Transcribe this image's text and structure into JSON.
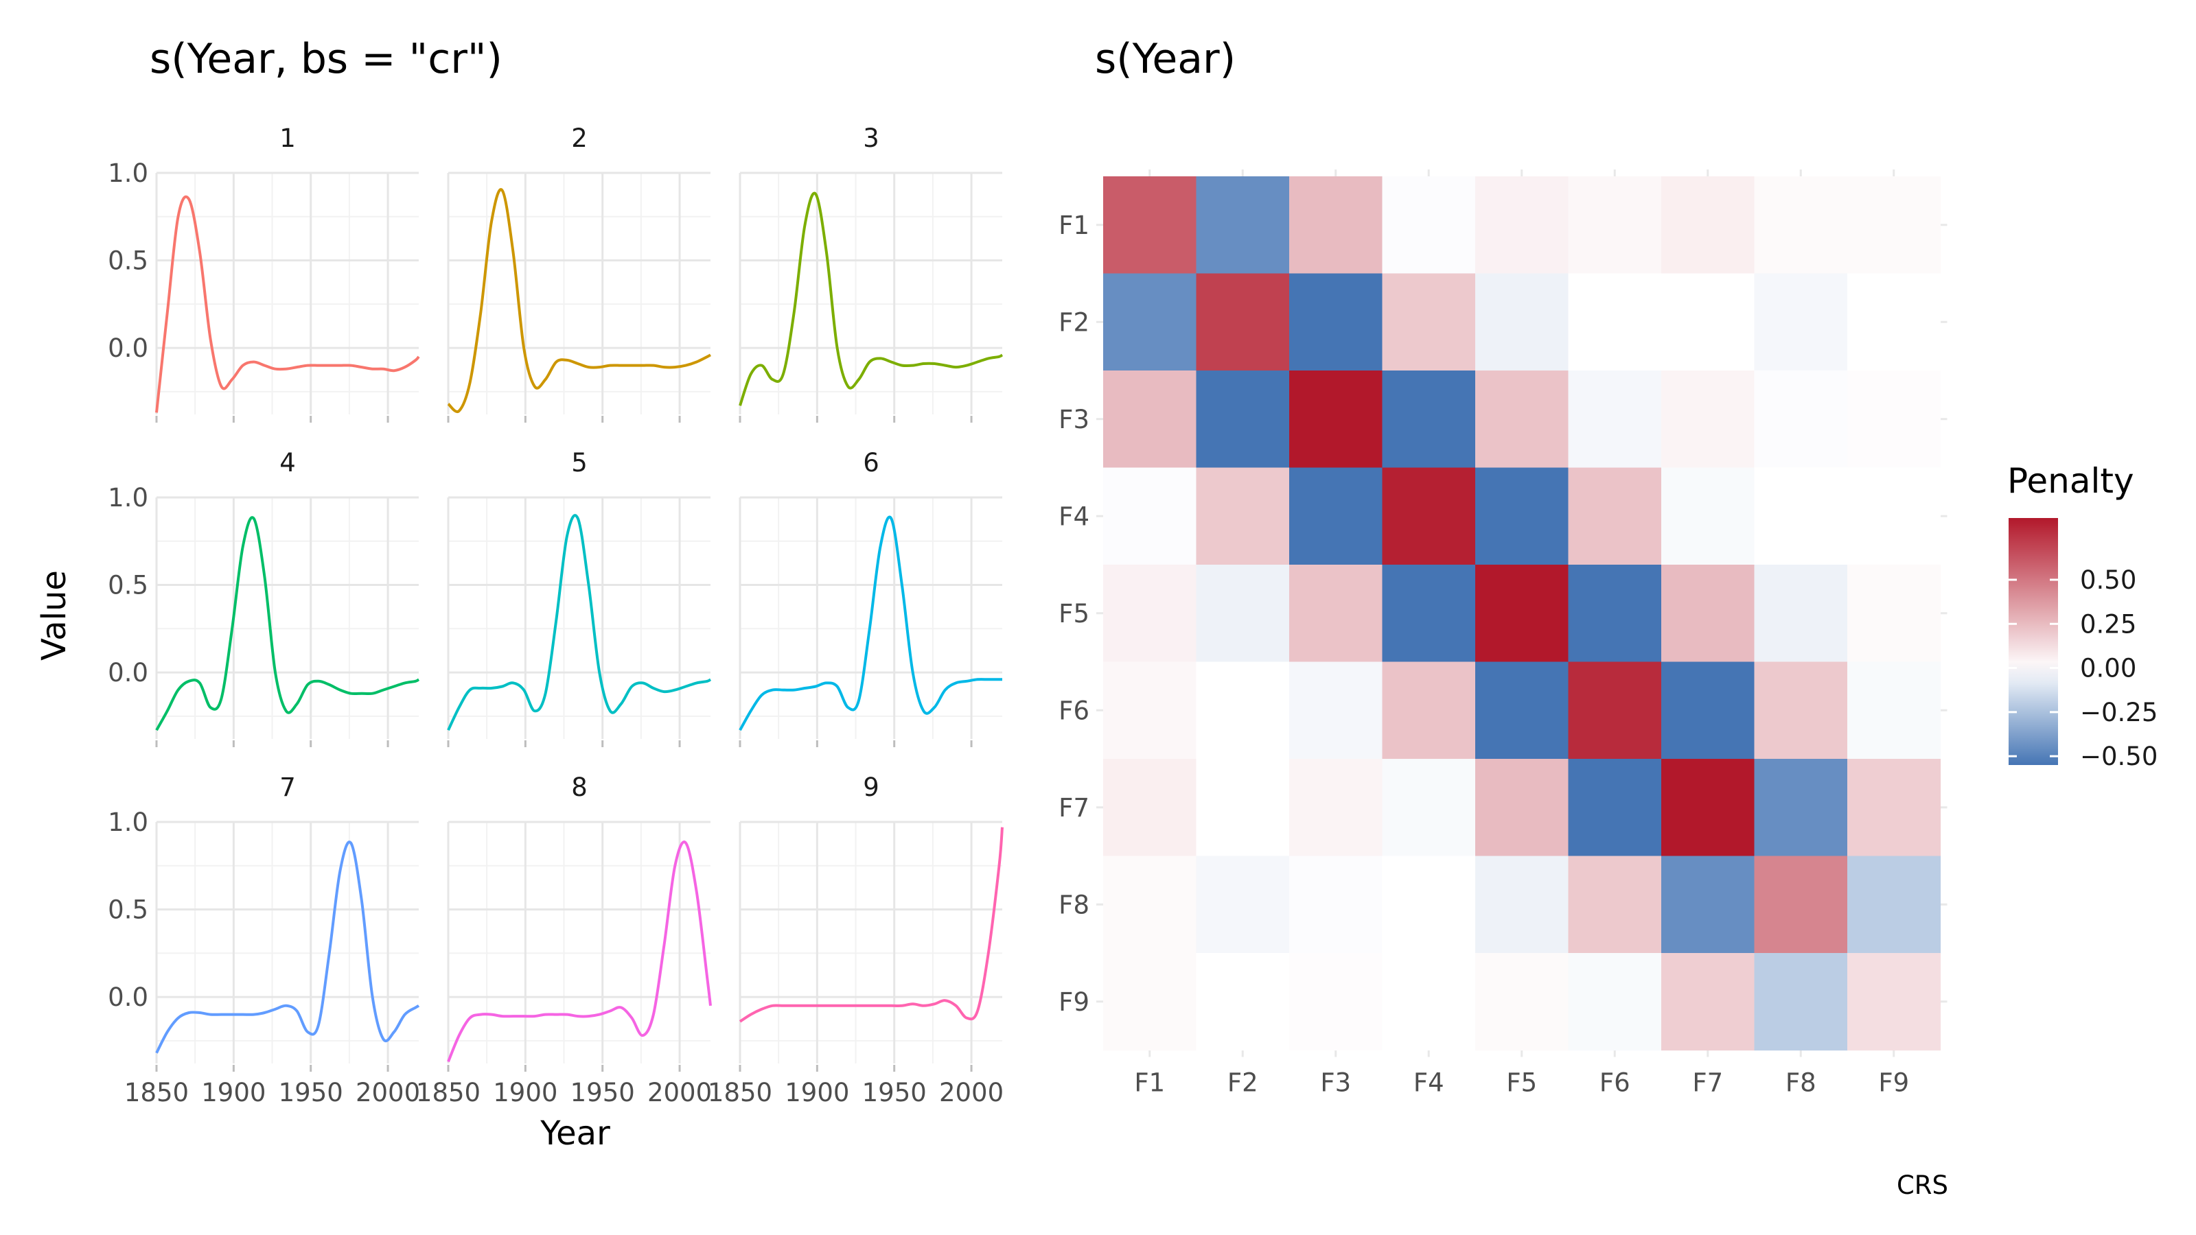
{
  "left_panel": {
    "title": "s(Year, bs = \"cr\")",
    "xlabel": "Year",
    "ylabel": "Value"
  },
  "right_panel": {
    "title": "s(Year)",
    "caption": "CRS"
  },
  "chart_data": [
    {
      "type": "line",
      "title": "s(Year, bs = \"cr\")",
      "xlabel": "Year",
      "ylabel": "Value",
      "xlim": [
        1850,
        2020
      ],
      "ylim": [
        -0.38,
        1.0
      ],
      "x_ticks": [
        1850,
        1900,
        1950,
        2000
      ],
      "x_tick_labels": [
        "1850",
        "1900",
        "1950",
        "2000"
      ],
      "y_ticks": [
        0.0,
        0.5,
        1.0
      ],
      "y_tick_labels": [
        "0.0",
        "0.5",
        "1.0"
      ],
      "grid": true,
      "facets": [
        {
          "label": "1",
          "color": "#F8766D",
          "x": [
            1850,
            1857,
            1864,
            1871,
            1878,
            1885,
            1892,
            1899,
            1906,
            1913,
            1920,
            1927,
            1934,
            1941,
            1948,
            1955,
            1962,
            1969,
            1976,
            1983,
            1990,
            1997,
            2004,
            2011,
            2018,
            2020
          ],
          "y": [
            -0.37,
            0.2,
            0.75,
            0.85,
            0.55,
            0.05,
            -0.22,
            -0.18,
            -0.1,
            -0.08,
            -0.1,
            -0.12,
            -0.12,
            -0.11,
            -0.1,
            -0.1,
            -0.1,
            -0.1,
            -0.1,
            -0.11,
            -0.12,
            -0.12,
            -0.13,
            -0.11,
            -0.07,
            -0.05
          ]
        },
        {
          "label": "2",
          "color": "#CD9600",
          "x": [
            1850,
            1857,
            1864,
            1871,
            1878,
            1885,
            1892,
            1899,
            1906,
            1913,
            1920,
            1927,
            1934,
            1941,
            1948,
            1955,
            1962,
            1969,
            1976,
            1983,
            1990,
            1997,
            2004,
            2011,
            2018,
            2020
          ],
          "y": [
            -0.32,
            -0.36,
            -0.2,
            0.2,
            0.72,
            0.9,
            0.55,
            0.0,
            -0.22,
            -0.18,
            -0.08,
            -0.07,
            -0.09,
            -0.11,
            -0.11,
            -0.1,
            -0.1,
            -0.1,
            -0.1,
            -0.1,
            -0.11,
            -0.11,
            -0.1,
            -0.08,
            -0.05,
            -0.04
          ]
        },
        {
          "label": "3",
          "color": "#7CAE00",
          "x": [
            1850,
            1857,
            1864,
            1871,
            1878,
            1885,
            1892,
            1899,
            1906,
            1913,
            1920,
            1927,
            1934,
            1941,
            1948,
            1955,
            1962,
            1969,
            1976,
            1983,
            1990,
            1997,
            2004,
            2011,
            2018,
            2020
          ],
          "y": [
            -0.33,
            -0.15,
            -0.1,
            -0.18,
            -0.15,
            0.2,
            0.7,
            0.88,
            0.55,
            0.0,
            -0.22,
            -0.18,
            -0.08,
            -0.06,
            -0.08,
            -0.1,
            -0.1,
            -0.09,
            -0.09,
            -0.1,
            -0.11,
            -0.1,
            -0.08,
            -0.06,
            -0.05,
            -0.04
          ]
        },
        {
          "label": "4",
          "color": "#00BE67",
          "x": [
            1850,
            1857,
            1864,
            1871,
            1878,
            1885,
            1892,
            1899,
            1906,
            1913,
            1920,
            1927,
            1934,
            1941,
            1948,
            1955,
            1962,
            1969,
            1976,
            1983,
            1990,
            1997,
            2004,
            2011,
            2018,
            2020
          ],
          "y": [
            -0.33,
            -0.22,
            -0.1,
            -0.05,
            -0.06,
            -0.2,
            -0.15,
            0.25,
            0.72,
            0.88,
            0.55,
            0.0,
            -0.22,
            -0.18,
            -0.07,
            -0.05,
            -0.07,
            -0.1,
            -0.12,
            -0.12,
            -0.12,
            -0.1,
            -0.08,
            -0.06,
            -0.05,
            -0.04
          ]
        },
        {
          "label": "5",
          "color": "#00BFC4",
          "x": [
            1850,
            1857,
            1864,
            1871,
            1878,
            1885,
            1892,
            1899,
            1906,
            1913,
            1920,
            1927,
            1934,
            1941,
            1948,
            1955,
            1962,
            1969,
            1976,
            1983,
            1990,
            1997,
            2004,
            2011,
            2018,
            2020
          ],
          "y": [
            -0.33,
            -0.2,
            -0.1,
            -0.09,
            -0.09,
            -0.08,
            -0.06,
            -0.1,
            -0.22,
            -0.12,
            0.3,
            0.78,
            0.88,
            0.5,
            0.0,
            -0.22,
            -0.18,
            -0.08,
            -0.06,
            -0.09,
            -0.11,
            -0.1,
            -0.08,
            -0.06,
            -0.05,
            -0.04
          ]
        },
        {
          "label": "6",
          "color": "#00B8E7",
          "x": [
            1850,
            1857,
            1864,
            1871,
            1878,
            1885,
            1892,
            1899,
            1906,
            1913,
            1920,
            1927,
            1934,
            1941,
            1948,
            1955,
            1962,
            1969,
            1976,
            1983,
            1990,
            1997,
            2004,
            2011,
            2018,
            2020
          ],
          "y": [
            -0.33,
            -0.22,
            -0.13,
            -0.1,
            -0.1,
            -0.1,
            -0.09,
            -0.08,
            -0.06,
            -0.08,
            -0.2,
            -0.16,
            0.25,
            0.72,
            0.88,
            0.5,
            0.0,
            -0.22,
            -0.2,
            -0.1,
            -0.06,
            -0.05,
            -0.04,
            -0.04,
            -0.04,
            -0.04
          ]
        },
        {
          "label": "7",
          "color": "#619CFF",
          "x": [
            1850,
            1857,
            1864,
            1871,
            1878,
            1885,
            1892,
            1899,
            1906,
            1913,
            1920,
            1927,
            1934,
            1941,
            1948,
            1955,
            1962,
            1969,
            1976,
            1983,
            1990,
            1997,
            2004,
            2011,
            2018,
            2020
          ],
          "y": [
            -0.32,
            -0.2,
            -0.12,
            -0.09,
            -0.09,
            -0.1,
            -0.1,
            -0.1,
            -0.1,
            -0.1,
            -0.09,
            -0.07,
            -0.05,
            -0.08,
            -0.2,
            -0.16,
            0.25,
            0.72,
            0.88,
            0.55,
            0.0,
            -0.24,
            -0.2,
            -0.1,
            -0.06,
            -0.05
          ]
        },
        {
          "label": "8",
          "color": "#F564E3",
          "x": [
            1850,
            1857,
            1864,
            1871,
            1878,
            1885,
            1892,
            1899,
            1906,
            1913,
            1920,
            1927,
            1934,
            1941,
            1948,
            1955,
            1962,
            1969,
            1976,
            1983,
            1990,
            1997,
            2004,
            2011,
            2018,
            2020
          ],
          "y": [
            -0.37,
            -0.22,
            -0.12,
            -0.1,
            -0.1,
            -0.11,
            -0.11,
            -0.11,
            -0.11,
            -0.1,
            -0.1,
            -0.1,
            -0.11,
            -0.11,
            -0.1,
            -0.08,
            -0.06,
            -0.12,
            -0.22,
            -0.1,
            0.3,
            0.75,
            0.88,
            0.6,
            0.1,
            -0.05
          ]
        },
        {
          "label": "9",
          "color": "#FF64B0",
          "x": [
            1850,
            1857,
            1864,
            1871,
            1878,
            1885,
            1892,
            1899,
            1906,
            1913,
            1920,
            1927,
            1934,
            1941,
            1948,
            1955,
            1962,
            1969,
            1976,
            1983,
            1990,
            1997,
            2004,
            2011,
            2018,
            2020
          ],
          "y": [
            -0.14,
            -0.1,
            -0.07,
            -0.05,
            -0.05,
            -0.05,
            -0.05,
            -0.05,
            -0.05,
            -0.05,
            -0.05,
            -0.05,
            -0.05,
            -0.05,
            -0.05,
            -0.05,
            -0.04,
            -0.05,
            -0.04,
            -0.02,
            -0.05,
            -0.12,
            -0.08,
            0.25,
            0.75,
            0.97
          ]
        }
      ]
    },
    {
      "type": "heatmap",
      "title": "s(Year)",
      "x_categories": [
        "F1",
        "F2",
        "F3",
        "F4",
        "F5",
        "F6",
        "F7",
        "F8",
        "F9"
      ],
      "y_categories": [
        "F1",
        "F2",
        "F3",
        "F4",
        "F5",
        "F6",
        "F7",
        "F8",
        "F9"
      ],
      "values": [
        [
          0.6,
          -0.45,
          0.25,
          -0.01,
          0.05,
          0.03,
          0.06,
          0.02,
          0.02
        ],
        [
          -0.45,
          0.7,
          -0.55,
          0.2,
          -0.05,
          0.0,
          0.0,
          -0.03,
          0.0
        ],
        [
          0.25,
          -0.55,
          0.85,
          -0.55,
          0.22,
          -0.03,
          0.04,
          -0.01,
          0.01
        ],
        [
          -0.01,
          0.2,
          -0.55,
          0.82,
          -0.55,
          0.22,
          -0.02,
          0.0,
          0.0
        ],
        [
          0.05,
          -0.05,
          0.22,
          -0.55,
          0.85,
          -0.55,
          0.25,
          -0.05,
          0.02
        ],
        [
          0.03,
          0.0,
          -0.03,
          0.22,
          -0.55,
          0.78,
          -0.55,
          0.2,
          -0.02
        ],
        [
          0.06,
          0.0,
          0.04,
          -0.02,
          0.25,
          -0.55,
          0.85,
          -0.45,
          0.18
        ],
        [
          0.02,
          -0.03,
          -0.01,
          0.0,
          -0.05,
          0.2,
          -0.45,
          0.45,
          -0.2
        ],
        [
          0.02,
          0.0,
          0.01,
          0.0,
          0.02,
          -0.02,
          0.18,
          -0.2,
          0.12
        ]
      ],
      "color_scale": {
        "low": "#4575B4",
        "mid": "#FFFFFF",
        "high": "#B2182B",
        "limits": [
          -0.55,
          0.85
        ]
      },
      "legend": {
        "title": "Penalty",
        "placement": "right",
        "ticks": [
          0.5,
          0.25,
          0.0,
          -0.25,
          -0.5
        ],
        "tick_labels": [
          "0.50",
          "0.25",
          "0.00",
          "−0.25",
          "−0.50"
        ]
      },
      "caption": "CRS"
    }
  ]
}
